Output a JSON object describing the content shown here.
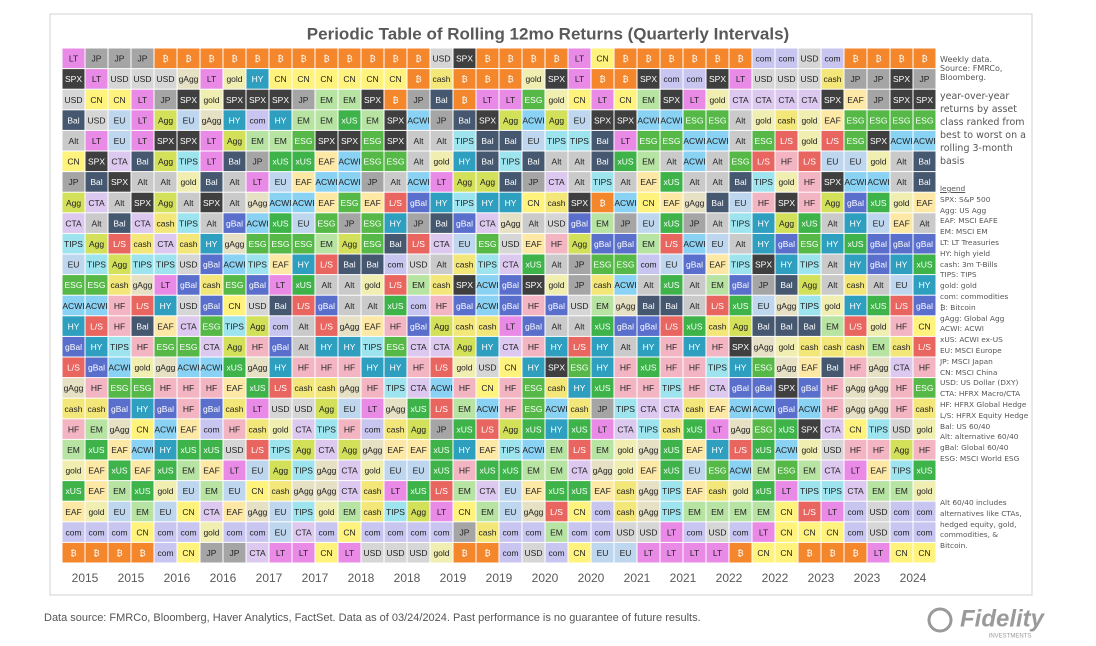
{
  "chart_data": {
    "type": "heatmap-table",
    "title": "Periodic Table of Rolling 12mo Returns (Quarterly Intervals)",
    "categories": [
      "2015",
      "2015",
      "2016",
      "2016",
      "2017",
      "2017",
      "2018",
      "2018",
      "2019",
      "2019",
      "2020",
      "2020",
      "2021",
      "2021",
      "2022",
      "2022",
      "2023",
      "2023",
      "2024"
    ],
    "rows": [
      [
        "LT",
        "JP",
        "JP",
        "JP",
        "₿",
        "₿",
        "₿",
        "₿",
        "₿",
        "₿",
        "₿",
        "₿",
        "₿",
        "₿",
        "₿",
        "₿",
        "USD",
        "SPX",
        "₿",
        "₿",
        "₿",
        "₿",
        "LT",
        "CN",
        "₿",
        "₿",
        "₿",
        "₿",
        "₿",
        "₿",
        "com",
        "com",
        "USD",
        "com",
        "₿",
        "₿",
        "₿",
        "₿"
      ],
      [
        "SPX",
        "LT",
        "USD",
        "USD",
        "USD",
        "gAgg",
        "LT",
        "gold",
        "HY",
        "CN",
        "CN",
        "CN",
        "CN",
        "CN",
        "CN",
        "₿",
        "cash",
        "₿",
        "₿",
        "₿",
        "gold",
        "SPX",
        "LT",
        "₿",
        "₿",
        "SPX",
        "com",
        "com",
        "SPX",
        "LT",
        "USD",
        "USD",
        "USD",
        "cash",
        "JP",
        "JP",
        "SPX",
        "JP"
      ],
      [
        "USD",
        "CN",
        "CN",
        "LT",
        "JP",
        "SPX",
        "gold",
        "SPX",
        "SPX",
        "SPX",
        "JP",
        "EM",
        "EM",
        "SPX",
        "₿",
        "JP",
        "Bal",
        "₿",
        "LT",
        "LT",
        "ESG",
        "gold",
        "CN",
        "LT",
        "CN",
        "EM",
        "SPX",
        "LT",
        "gold",
        "CTA",
        "CTA",
        "CTA",
        "CTA",
        "SPX",
        "EAF",
        "JP",
        "SPX",
        "SPX"
      ],
      [
        "Bal",
        "USD",
        "EU",
        "LT",
        "Agg",
        "EU",
        "gAgg",
        "HY",
        "com",
        "HY",
        "EM",
        "EM",
        "xUS",
        "EM",
        "SPX",
        "ACWI",
        "JP",
        "Bal",
        "SPX",
        "Agg",
        "ACWI",
        "Agg",
        "EU",
        "SPX",
        "SPX",
        "ACWI",
        "ACWI",
        "ESG",
        "ESG",
        "Alt",
        "gold",
        "cash",
        "gold",
        "EAF",
        "ESG",
        "ESG",
        "ESG",
        "ESG"
      ],
      [
        "Alt",
        "LT",
        "EU",
        "LT",
        "SPX",
        "SPX",
        "LT",
        "Agg",
        "EM",
        "EM",
        "ESG",
        "SPX",
        "SPX",
        "ESG",
        "SPX",
        "Alt",
        "Alt",
        "TIPS",
        "Bal",
        "Bal",
        "EU",
        "TIPS",
        "TIPS",
        "Bal",
        "LT",
        "ESG",
        "ESG",
        "ACWI",
        "ACWI",
        "Alt",
        "ESG",
        "L/S",
        "gold",
        "L/S",
        "ESG",
        "SPX",
        "ACWI",
        "ACWI"
      ],
      [
        "CN",
        "SPX",
        "CTA",
        "Bal",
        "Agg",
        "TIPS",
        "LT",
        "Bal",
        "JP",
        "xUS",
        "xUS",
        "EAF",
        "ACWI",
        "ESG",
        "ESG",
        "Alt",
        "gold",
        "HY",
        "Bal",
        "TIPS",
        "Bal",
        "Alt",
        "Alt",
        "Bal",
        "xUS",
        "EM",
        "Alt",
        "ACWI",
        "Alt",
        "ESG",
        "L/S",
        "HF",
        "L/S",
        "EU",
        "EU",
        "gold",
        "Alt",
        "Bal"
      ],
      [
        "JP",
        "Bal",
        "SPX",
        "Alt",
        "Alt",
        "gold",
        "Bal",
        "Alt",
        "LT",
        "EU",
        "EAF",
        "ACWI",
        "ACWI",
        "JP",
        "Alt",
        "ACWI",
        "LT",
        "Agg",
        "Agg",
        "Bal",
        "JP",
        "CTA",
        "Alt",
        "TIPS",
        "Alt",
        "EAF",
        "xUS",
        "Alt",
        "Alt",
        "Bal",
        "TIPS",
        "gold",
        "HF",
        "SPX",
        "ACWI",
        "ACWI",
        "Alt",
        "Bal"
      ],
      [
        "Agg",
        "CTA",
        "Alt",
        "SPX",
        "Agg",
        "Alt",
        "SPX",
        "Alt",
        "gAgg",
        "ACWI",
        "ACWI",
        "EAF",
        "ESG",
        "EAF",
        "L/S",
        "gBal",
        "HY",
        "TIPS",
        "HY",
        "HY",
        "CN",
        "cash",
        "SPX",
        "₿",
        "ACWI",
        "CN",
        "EAF",
        "gAgg",
        "Bal",
        "EU",
        "HF",
        "SPX",
        "HF",
        "Agg",
        "gBal",
        "xUS",
        "gold",
        "EAF"
      ],
      [
        "CTA",
        "Alt",
        "Bal",
        "CTA",
        "cash",
        "TIPS",
        "Alt",
        "gBal",
        "ACWI",
        "xUS",
        "EU",
        "ESG",
        "JP",
        "ESG",
        "HY",
        "JP",
        "Bal",
        "gBal",
        "CTA",
        "gAgg",
        "Alt",
        "USD",
        "gBal",
        "EM",
        "JP",
        "EU",
        "xUS",
        "JP",
        "Alt",
        "TIPS",
        "HY",
        "Agg",
        "xUS",
        "Alt",
        "HY",
        "EU",
        "EAF",
        "Alt"
      ],
      [
        "TIPS",
        "Agg",
        "L/S",
        "cash",
        "CTA",
        "cash",
        "HY",
        "gAgg",
        "ESG",
        "ESG",
        "ESG",
        "EM",
        "Agg",
        "ESG",
        "Bal",
        "L/S",
        "CTA",
        "EU",
        "ESG",
        "USD",
        "EAF",
        "HF",
        "Agg",
        "gBal",
        "gBal",
        "EM",
        "L/S",
        "ACWI",
        "EU",
        "Alt",
        "HY",
        "gBal",
        "ESG",
        "HY",
        "xUS",
        "gBal",
        "gBal",
        "gBal"
      ],
      [
        "EU",
        "TIPS",
        "Agg",
        "TIPS",
        "TIPS",
        "USD",
        "gBal",
        "ACWI",
        "TIPS",
        "EAF",
        "HY",
        "L/S",
        "Bal",
        "Bal",
        "com",
        "USD",
        "Alt",
        "cash",
        "TIPS",
        "CTA",
        "xUS",
        "Alt",
        "JP",
        "ESG",
        "ESG",
        "com",
        "EU",
        "gBal",
        "EAF",
        "TIPS",
        "SPX",
        "HY",
        "TIPS",
        "Alt",
        "HY",
        "gBal",
        "HY",
        "xUS"
      ],
      [
        "ESG",
        "ESG",
        "cash",
        "gAgg",
        "LT",
        "gBal",
        "cash",
        "ESG",
        "gBal",
        "LT",
        "xUS",
        "Alt",
        "Alt",
        "gold",
        "L/S",
        "EM",
        "cash",
        "SPX",
        "ACWI",
        "gBal",
        "SPX",
        "gold",
        "JP",
        "cash",
        "ACWI",
        "Alt",
        "xUS",
        "Alt",
        "EM",
        "gBal",
        "JP",
        "Bal",
        "Agg",
        "Alt",
        "cash",
        "Alt",
        "EU",
        "HY"
      ],
      [
        "ACWI",
        "ACWI",
        "HF",
        "L/S",
        "HY",
        "USD",
        "gBal",
        "CN",
        "USD",
        "Bal",
        "L/S",
        "gBal",
        "Alt",
        "Alt",
        "xUS",
        "com",
        "HF",
        "gBal",
        "ACWI",
        "gBal",
        "HF",
        "gBal",
        "USD",
        "EM",
        "gAgg",
        "Bal",
        "Bal",
        "Alt",
        "L/S",
        "xUS",
        "EU",
        "gAgg",
        "TIPS",
        "gold",
        "HY",
        "xUS",
        "L/S",
        "gBal"
      ],
      [
        "HY",
        "L/S",
        "HF",
        "Bal",
        "EAF",
        "CTA",
        "ESG",
        "TIPS",
        "Agg",
        "com",
        "Alt",
        "L/S",
        "gAgg",
        "EAF",
        "HF",
        "gBal",
        "Agg",
        "cash",
        "cash",
        "LT",
        "gBal",
        "Alt",
        "Alt",
        "xUS",
        "gBal",
        "gBal",
        "L/S",
        "xUS",
        "cash",
        "Agg",
        "Bal",
        "Bal",
        "Bal",
        "EM",
        "L/S",
        "gold",
        "HF",
        "CN"
      ],
      [
        "gBal",
        "HY",
        "TIPS",
        "HF",
        "ESG",
        "ESG",
        "CTA",
        "Agg",
        "HF",
        "gBal",
        "Alt",
        "HY",
        "HY",
        "TIPS",
        "ESG",
        "CTA",
        "CTA",
        "Agg",
        "HY",
        "CTA",
        "HF",
        "HY",
        "L/S",
        "HY",
        "Alt",
        "HY",
        "HF",
        "HY",
        "HF",
        "SPX",
        "gAgg",
        "gold",
        "cash",
        "cash",
        "cash",
        "EM",
        "cash",
        "L/S"
      ],
      [
        "L/S",
        "gBal",
        "ACWI",
        "gold",
        "gAgg",
        "ACWI",
        "ACWI",
        "xUS",
        "gAgg",
        "HY",
        "HF",
        "HF",
        "HF",
        "HY",
        "HY",
        "HF",
        "L/S",
        "gold",
        "USD",
        "CN",
        "HY",
        "SPX",
        "ESG",
        "HY",
        "HF",
        "xUS",
        "HF",
        "HF",
        "TIPS",
        "HY",
        "ESG",
        "gAgg",
        "EAF",
        "Bal",
        "HF",
        "gAgg",
        "CTA",
        "HF"
      ],
      [
        "gAgg",
        "HF",
        "ESG",
        "ESG",
        "HF",
        "HF",
        "HF",
        "EAF",
        "xUS",
        "L/S",
        "cash",
        "cash",
        "gAgg",
        "HF",
        "TIPS",
        "CTA",
        "ACWI",
        "HF",
        "CN",
        "HF",
        "ESG",
        "cash",
        "HY",
        "xUS",
        "HF",
        "HF",
        "TIPS",
        "HF",
        "CTA",
        "gBal",
        "gBal",
        "SPX",
        "gBal",
        "HF",
        "gAgg",
        "gAgg",
        "HF",
        "ESG"
      ],
      [
        "cash",
        "cash",
        "gBal",
        "HY",
        "gBal",
        "HF",
        "gBal",
        "cash",
        "LT",
        "USD",
        "USD",
        "Agg",
        "EU",
        "LT",
        "gAgg",
        "xUS",
        "L/S",
        "EM",
        "ACWI",
        "HF",
        "ESG",
        "ACWI",
        "cash",
        "JP",
        "TIPS",
        "CTA",
        "CTA",
        "cash",
        "EAF",
        "ACWI",
        "ACWI",
        "gBal",
        "ACWI",
        "HF",
        "gAgg",
        "gAgg",
        "HF",
        "cash"
      ],
      [
        "HF",
        "EM",
        "gAgg",
        "CN",
        "ACWI",
        "EAF",
        "com",
        "HF",
        "cash",
        "gold",
        "CTA",
        "TIPS",
        "HF",
        "com",
        "cash",
        "Agg",
        "JP",
        "xUS",
        "L/S",
        "Agg",
        "xUS",
        "HY",
        "xUS",
        "LT",
        "CTA",
        "TIPS",
        "cash",
        "xUS",
        "LT",
        "gAgg",
        "ESG",
        "xUS",
        "SPX",
        "CTA",
        "CN",
        "TIPS",
        "USD",
        "gold"
      ],
      [
        "EM",
        "xUS",
        "EAF",
        "ACWI",
        "HY",
        "xUS",
        "xUS",
        "USD",
        "L/S",
        "TIPS",
        "Agg",
        "CTA",
        "Agg",
        "gAgg",
        "EAF",
        "EAF",
        "xUS",
        "HY",
        "EAF",
        "TIPS",
        "ACWI",
        "EM",
        "L/S",
        "EM",
        "gold",
        "gAgg",
        "xUS",
        "EAF",
        "HY",
        "L/S",
        "xUS",
        "ACWI",
        "gold",
        "USD",
        "HF",
        "HF",
        "Agg",
        "HF"
      ],
      [
        "gold",
        "EAF",
        "xUS",
        "EAF",
        "xUS",
        "EM",
        "EAF",
        "LT",
        "EU",
        "Agg",
        "TIPS",
        "gAgg",
        "CTA",
        "gold",
        "EU",
        "EU",
        "xUS",
        "HF",
        "xUS",
        "xUS",
        "EM",
        "EM",
        "CTA",
        "gAgg",
        "gold",
        "EAF",
        "xUS",
        "EU",
        "ESG",
        "ACWI",
        "EM",
        "ESG",
        "EM",
        "CTA",
        "LT",
        "EAF",
        "TIPS",
        "xUS"
      ],
      [
        "xUS",
        "EAF",
        "EM",
        "xUS",
        "gold",
        "EU",
        "EM",
        "EU",
        "CN",
        "cash",
        "gAgg",
        "gAgg",
        "CTA",
        "cash",
        "LT",
        "xUS",
        "L/S",
        "EM",
        "CTA",
        "EU",
        "EAF",
        "xUS",
        "xUS",
        "EAF",
        "cash",
        "gAgg",
        "TIPS",
        "EAF",
        "cash",
        "gold",
        "xUS",
        "LT",
        "TIPS",
        "TIPS",
        "CTA",
        "EM",
        "EM",
        "gold"
      ],
      [
        "EAF",
        "gold",
        "EU",
        "EM",
        "EU",
        "CN",
        "CTA",
        "EAF",
        "gAgg",
        "EU",
        "TIPS",
        "gold",
        "EM",
        "cash",
        "TIPS",
        "Agg",
        "LT",
        "CN",
        "EM",
        "EU",
        "gAgg",
        "L/S",
        "CN",
        "com",
        "cash",
        "gAgg",
        "TIPS",
        "EM",
        "EM",
        "EM",
        "EM",
        "CN",
        "L/S",
        "LT",
        "com",
        "USD",
        "com",
        "com"
      ],
      [
        "com",
        "com",
        "com",
        "CN",
        "com",
        "com",
        "gold",
        "com",
        "com",
        "EU",
        "CTA",
        "com",
        "CN",
        "com",
        "com",
        "com",
        "com",
        "JP",
        "cash",
        "com",
        "com",
        "EM",
        "com",
        "com",
        "USD",
        "USD",
        "LT",
        "com",
        "USD",
        "com",
        "LT",
        "CN",
        "CN",
        "CN",
        "com",
        "USD",
        "com",
        "com"
      ],
      [
        "₿",
        "₿",
        "₿",
        "₿",
        "com",
        "CN",
        "JP",
        "JP",
        "CTA",
        "LT",
        "LT",
        "CN",
        "LT",
        "USD",
        "USD",
        "USD",
        "gold",
        "₿",
        "₿",
        "com",
        "USD",
        "com",
        "CN",
        "EU",
        "EU",
        "LT",
        "LT",
        "LT",
        "LT",
        "₿",
        "CN",
        "CN",
        "₿",
        "₿",
        "₿",
        "LT",
        "CN",
        "CN"
      ]
    ],
    "colors": {
      "₿": "#f4862c",
      "LT": "#e98be6",
      "JP": "#a5a5a5",
      "USD": "#d6d6d6",
      "SPX": "#3f3f3f",
      "CN": "#fff37e",
      "gold": "#f1eeb2",
      "HY": "#2f9fc0",
      "EM": "#b7e3a3",
      "xUS": "#3db34a",
      "EAF": "#fde8a6",
      "ACWI": "#8ad2f3",
      "ESG": "#55b847",
      "Bal": "#465870",
      "Alt": "#cacaca",
      "TIPS": "#9ee4ef",
      "cash": "#f4e77a",
      "Agg": "#d2e05a",
      "gAgg": "#e6e1c4",
      "EU": "#bfd7ee",
      "CTA": "#ddc8ef",
      "HF": "#f4b5c3",
      "L/S": "#e96660",
      "gBal": "#5a6ecb",
      "com": "#c9c5f1"
    },
    "dark_text": [
      "SPX",
      "Bal",
      "gBal",
      "₿",
      "HY",
      "xUS",
      "ESG",
      "L/S"
    ],
    "note1": "Weekly data. Source: FMRCo, Bloomberg.",
    "note2": "year-over-year returns by asset class ranked from best to worst on a rolling 3-month basis",
    "legend_title": "legend",
    "legend": [
      "SPX: S&P 500",
      "Agg: US Agg",
      "EAF: MSCI EAFE",
      "EM: MSCI EM",
      "LT: LT Treasuries",
      "HY: high yield",
      "cash: 3m T-Bills",
      "TIPS: TIPS",
      "gold: gold",
      "com: commodities",
      "₿: Bitcoin",
      "gAgg: Global Agg",
      "ACWI: ACWI",
      "xUS: ACWI ex-US",
      "EU: MSCI Europe",
      "JP: MSCI Japan",
      "CN: MSCI China",
      "USD: US Dollar (DXY)",
      "CTA: HFRX Macro/CTA",
      "HF: HFRX Global Hedge",
      "L/S: HFRX Equity Hedge",
      "Bal: US 60/40",
      "Alt: alternative 60/40",
      "gBal: Global 60/40",
      "ESG: MSCI World ESG"
    ],
    "note3": "Alt 60/40 includes alternatives like CTAs, hedged equity, gold, commodities, & Bitcoin.",
    "footer": "Data source: FMRCo, Bloomberg, Haver Analytics, FactSet. Data as of 03/24/2024. Past performance is no guarantee of future results.",
    "logo": "Fidelity",
    "logo_sub": "INVESTMENTS"
  }
}
